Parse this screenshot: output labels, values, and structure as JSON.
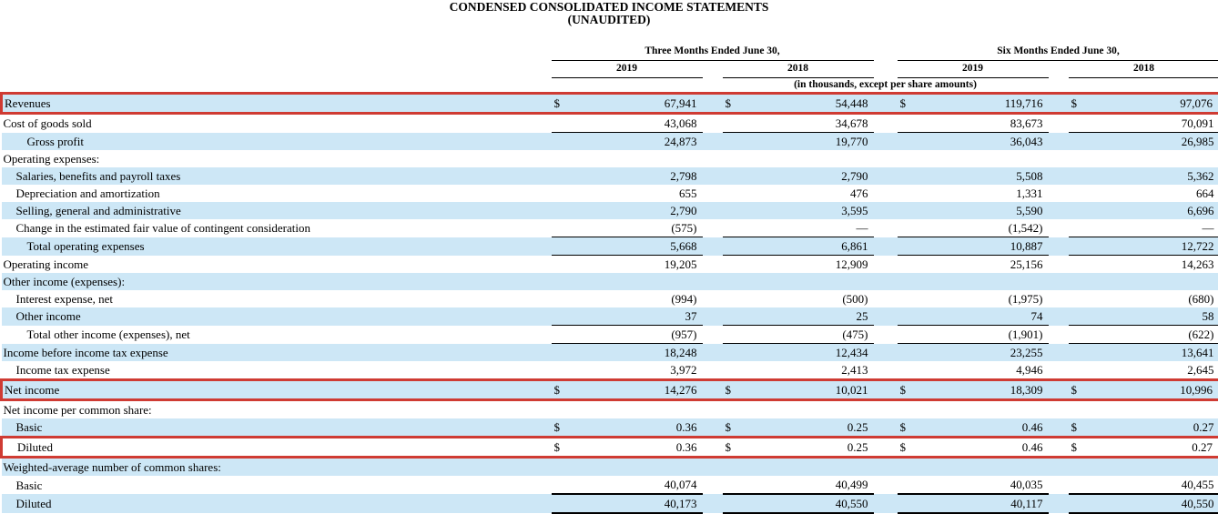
{
  "title": "CONDENSED CONSOLIDATED INCOME STATEMENTS",
  "subtitle": "(UNAUDITED)",
  "colors": {
    "highlight_border": "#cf3b33",
    "row_shade": "#cde7f6"
  },
  "table": {
    "col_groups": [
      "Three Months Ended June 30,",
      "Six Months Ended June 30,"
    ],
    "year_cols": [
      "2019",
      "2018",
      "2019",
      "2018"
    ],
    "units_note": "(in thousands, except per share amounts)",
    "rows": [
      {
        "label": "Revenues",
        "indent": 0,
        "dollar": true,
        "values": [
          "67,941",
          "54,448",
          "119,716",
          "97,076"
        ],
        "shaded": true,
        "highlight": true,
        "underline": "none"
      },
      {
        "label": "Cost of goods sold",
        "indent": 0,
        "dollar": false,
        "values": [
          "43,068",
          "34,678",
          "83,673",
          "70,091"
        ],
        "shaded": false,
        "highlight": false,
        "underline": "thin"
      },
      {
        "label": "Gross profit",
        "indent": 2,
        "dollar": false,
        "values": [
          "24,873",
          "19,770",
          "36,043",
          "26,985"
        ],
        "shaded": true,
        "highlight": false,
        "underline": "none"
      },
      {
        "label": "Operating expenses:",
        "indent": 0,
        "dollar": false,
        "values": [
          "",
          "",
          "",
          ""
        ],
        "shaded": false,
        "highlight": false,
        "underline": "none"
      },
      {
        "label": "Salaries, benefits and payroll taxes",
        "indent": 1,
        "dollar": false,
        "values": [
          "2,798",
          "2,790",
          "5,508",
          "5,362"
        ],
        "shaded": true,
        "highlight": false,
        "underline": "none"
      },
      {
        "label": "Depreciation and amortization",
        "indent": 1,
        "dollar": false,
        "values": [
          "655",
          "476",
          "1,331",
          "664"
        ],
        "shaded": false,
        "highlight": false,
        "underline": "none"
      },
      {
        "label": "Selling, general and administrative",
        "indent": 1,
        "dollar": false,
        "values": [
          "2,790",
          "3,595",
          "5,590",
          "6,696"
        ],
        "shaded": true,
        "highlight": false,
        "underline": "none"
      },
      {
        "label": "Change in the estimated fair value of contingent consideration",
        "indent": 1,
        "dollar": false,
        "values": [
          "(575)",
          "—",
          "(1,542)",
          "—"
        ],
        "shaded": false,
        "highlight": false,
        "underline": "thin"
      },
      {
        "label": "Total operating expenses",
        "indent": 2,
        "dollar": false,
        "values": [
          "5,668",
          "6,861",
          "10,887",
          "12,722"
        ],
        "shaded": true,
        "highlight": false,
        "underline": "thin"
      },
      {
        "label": "Operating income",
        "indent": 0,
        "dollar": false,
        "values": [
          "19,205",
          "12,909",
          "25,156",
          "14,263"
        ],
        "shaded": false,
        "highlight": false,
        "underline": "none"
      },
      {
        "label": "Other income (expenses):",
        "indent": 0,
        "dollar": false,
        "values": [
          "",
          "",
          "",
          ""
        ],
        "shaded": true,
        "highlight": false,
        "underline": "none"
      },
      {
        "label": "Interest expense, net",
        "indent": 1,
        "dollar": false,
        "values": [
          "(994)",
          "(500)",
          "(1,975)",
          "(680)"
        ],
        "shaded": false,
        "highlight": false,
        "underline": "none"
      },
      {
        "label": "Other income",
        "indent": 1,
        "dollar": false,
        "values": [
          "37",
          "25",
          "74",
          "58"
        ],
        "shaded": true,
        "highlight": false,
        "underline": "thin"
      },
      {
        "label": "Total other income (expenses), net",
        "indent": 2,
        "dollar": false,
        "values": [
          "(957)",
          "(475)",
          "(1,901)",
          "(622)"
        ],
        "shaded": false,
        "highlight": false,
        "underline": "thin"
      },
      {
        "label": "Income before income tax expense",
        "indent": 0,
        "dollar": false,
        "values": [
          "18,248",
          "12,434",
          "23,255",
          "13,641"
        ],
        "shaded": true,
        "highlight": false,
        "underline": "none"
      },
      {
        "label": "Income tax expense",
        "indent": 1,
        "dollar": false,
        "values": [
          "3,972",
          "2,413",
          "4,946",
          "2,645"
        ],
        "shaded": false,
        "highlight": false,
        "underline": "none"
      },
      {
        "label": "Net income",
        "indent": 0,
        "dollar": true,
        "values": [
          "14,276",
          "10,021",
          "18,309",
          "10,996"
        ],
        "shaded": true,
        "highlight": true,
        "underline": "none"
      },
      {
        "label": "Net income per common share:",
        "indent": 0,
        "dollar": false,
        "values": [
          "",
          "",
          "",
          ""
        ],
        "shaded": false,
        "highlight": false,
        "underline": "none"
      },
      {
        "label": "Basic",
        "indent": 1,
        "dollar": true,
        "values": [
          "0.36",
          "0.25",
          "0.46",
          "0.27"
        ],
        "shaded": true,
        "highlight": false,
        "underline": "none"
      },
      {
        "label": "Diluted",
        "indent": 1,
        "dollar": true,
        "values": [
          "0.36",
          "0.25",
          "0.46",
          "0.27"
        ],
        "shaded": false,
        "highlight": true,
        "underline": "none"
      },
      {
        "label": "Weighted-average number of common shares:",
        "indent": 0,
        "dollar": false,
        "values": [
          "",
          "",
          "",
          ""
        ],
        "shaded": true,
        "highlight": false,
        "underline": "none"
      },
      {
        "label": "Basic",
        "indent": 1,
        "dollar": false,
        "values": [
          "40,074",
          "40,499",
          "40,035",
          "40,455"
        ],
        "shaded": false,
        "highlight": false,
        "underline": "thick"
      },
      {
        "label": "Diluted",
        "indent": 1,
        "dollar": false,
        "values": [
          "40,173",
          "40,550",
          "40,117",
          "40,550"
        ],
        "shaded": true,
        "highlight": false,
        "underline": "thick"
      }
    ]
  }
}
